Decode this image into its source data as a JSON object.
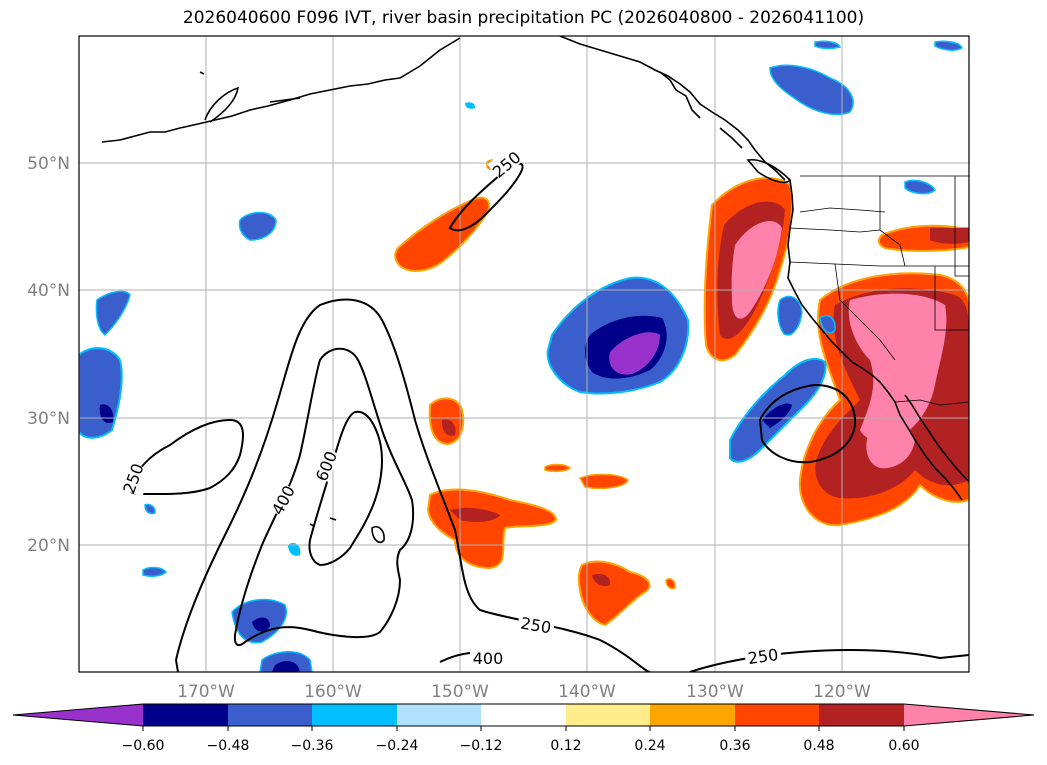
{
  "title": "2026040600 F096 IVT, river basin precipitation PC (2026040800 - 2026041100)",
  "map": {
    "projection": "PlateCarree",
    "lon_range": [
      -180,
      -110
    ],
    "lat_range": [
      10,
      60
    ],
    "gridlines": true,
    "lon_labels": [
      "170°W",
      "160°W",
      "150°W",
      "140°W",
      "130°W",
      "120°W"
    ],
    "lat_labels": [
      "50°N",
      "40°N",
      "30°N",
      "20°N"
    ],
    "ivt_contour_levels": [
      "250",
      "400",
      "600"
    ],
    "contour_color": "#000000",
    "coastline_color": "#000000"
  },
  "colorbar": {
    "extend": "both",
    "colors": [
      "#9932cc",
      "#00008b",
      "#3a5fcd",
      "#00bfff",
      "#b0e2ff",
      "#ffffff",
      "#ffec8b",
      "#ffa500",
      "#ff4500",
      "#b22222",
      "#ff82ab"
    ],
    "tick_labels": [
      "−0.60",
      "−0.48",
      "−0.36",
      "−0.24",
      "−0.12",
      "0.12",
      "0.24",
      "0.36",
      "0.48",
      "0.60"
    ]
  }
}
